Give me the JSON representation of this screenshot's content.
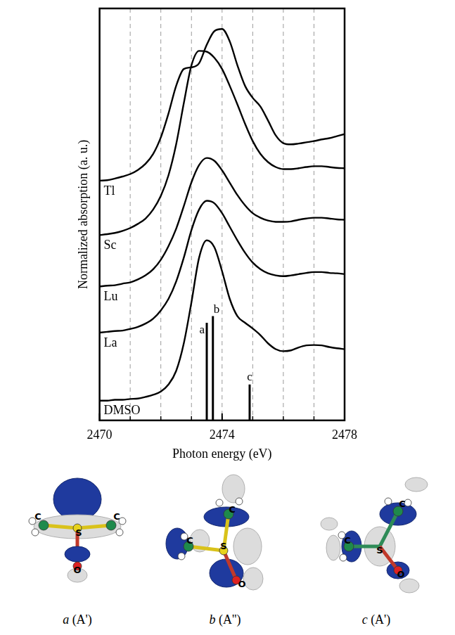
{
  "chart_data": {
    "type": "line",
    "x_label": "Photon energy (eV)",
    "y_label": "Normalized absorption (a. u.)",
    "x": [
      2470,
      2470.25,
      2470.5,
      2470.75,
      2471,
      2471.25,
      2471.5,
      2471.75,
      2472,
      2472.25,
      2472.5,
      2472.75,
      2473,
      2473.25,
      2473.5,
      2473.75,
      2474,
      2474.25,
      2474.5,
      2474.75,
      2475,
      2475.25,
      2475.5,
      2475.75,
      2476,
      2476.25,
      2476.5,
      2476.75,
      2477,
      2477.25,
      2477.5,
      2477.75,
      2478
    ],
    "series": [
      {
        "name": "Tl",
        "color": "#000000",
        "values": [
          58.2,
          58.3,
          58.7,
          59.2,
          59.8,
          60.8,
          62.3,
          64.7,
          68.7,
          74.5,
          81.2,
          85.3,
          85.7,
          86.7,
          91.2,
          94.5,
          95.0,
          92.0,
          86.2,
          81.2,
          78.3,
          76.2,
          72.8,
          69.2,
          67.3,
          67.0,
          67.2,
          67.5,
          67.8,
          68.2,
          68.5,
          69.0,
          69.5
        ]
      },
      {
        "name": "Sc",
        "color": "#000000",
        "values": [
          45.0,
          45.2,
          45.5,
          46.0,
          46.7,
          47.7,
          49.0,
          51.2,
          54.5,
          59.5,
          67.0,
          77.0,
          86.2,
          89.7,
          89.5,
          88.0,
          85.3,
          81.2,
          76.7,
          72.0,
          67.8,
          64.7,
          62.7,
          61.5,
          61.0,
          61.0,
          61.2,
          61.5,
          61.7,
          61.7,
          61.5,
          61.3,
          61.2
        ]
      },
      {
        "name": "Lu",
        "color": "#000000",
        "values": [
          32.5,
          32.7,
          32.8,
          33.2,
          33.5,
          34.2,
          35.2,
          36.7,
          39.0,
          42.3,
          46.5,
          52.0,
          57.8,
          62.0,
          63.7,
          63.0,
          60.7,
          57.7,
          54.7,
          52.2,
          50.3,
          49.2,
          48.5,
          48.2,
          48.2,
          48.3,
          48.7,
          49.0,
          49.2,
          49.2,
          49.0,
          48.8,
          48.7
        ]
      },
      {
        "name": "La",
        "color": "#000000",
        "values": [
          21.3,
          21.5,
          21.7,
          21.8,
          22.2,
          22.7,
          23.5,
          24.7,
          26.7,
          29.5,
          33.7,
          39.5,
          46.2,
          51.2,
          53.3,
          52.7,
          50.3,
          47.0,
          43.7,
          40.7,
          38.3,
          36.7,
          35.7,
          35.2,
          35.0,
          35.2,
          35.5,
          35.8,
          36.0,
          36.0,
          35.8,
          35.7,
          35.5
        ]
      },
      {
        "name": "DMSO",
        "color": "#000000",
        "values": [
          4.8,
          4.8,
          5.0,
          5.0,
          5.2,
          5.3,
          5.7,
          6.2,
          7.0,
          8.7,
          12.0,
          18.7,
          28.7,
          39.5,
          43.7,
          42.0,
          36.2,
          29.5,
          25.3,
          23.7,
          22.3,
          20.7,
          18.7,
          17.3,
          16.8,
          17.0,
          17.7,
          18.2,
          18.3,
          18.2,
          17.8,
          17.5,
          17.3
        ]
      }
    ],
    "sticks": {
      "labels": [
        "a",
        "b",
        "c"
      ],
      "x": [
        2473.5,
        2473.7,
        2474.9
      ],
      "values": [
        23.7,
        25.3,
        8.7
      ],
      "color": "#000000"
    },
    "xlim": [
      2470,
      2478
    ],
    "xticks": [
      2470,
      2474,
      2478
    ],
    "ylim": [
      0,
      100
    ],
    "tick_labels": "x",
    "grid": true
  },
  "orbitals": [
    {
      "label": "a",
      "symmetry": "(A')",
      "atoms": [
        "C",
        "C",
        "S",
        "O"
      ]
    },
    {
      "label": "b",
      "symmetry": "(A'')",
      "atoms": [
        "C",
        "C",
        "S",
        "O"
      ]
    },
    {
      "label": "c",
      "symmetry": "(A')",
      "atoms": [
        "C",
        "C",
        "S",
        "O"
      ]
    }
  ]
}
